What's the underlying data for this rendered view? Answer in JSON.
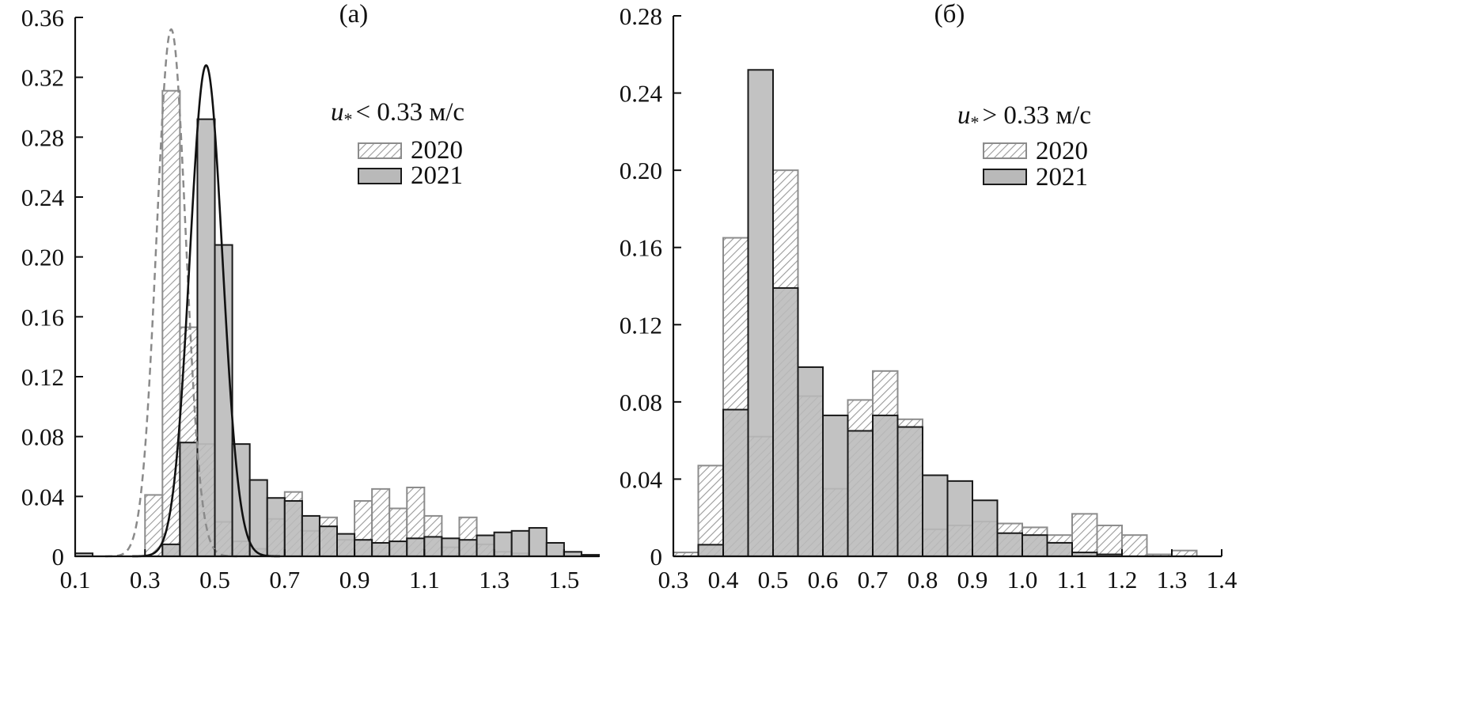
{
  "colors": {
    "axis": "#111111",
    "bar2021_fill": "#b9b9b9",
    "bar2021_stroke": "#1a1a1a",
    "bar2020_stroke": "#8c8c8c",
    "hatch": "#9a9a9a",
    "curve2020": "#8a8a8a",
    "curve2021": "#111111"
  },
  "chart_data": [
    {
      "type": "bar",
      "panel": "left",
      "title": "(а)",
      "xlim": [
        0.1,
        1.6
      ],
      "ylim": [
        0,
        0.36
      ],
      "xticks": [
        0.1,
        0.3,
        0.5,
        0.7,
        0.9,
        1.1,
        1.3,
        1.5
      ],
      "xtick_labels": [
        "0.1",
        "0.3",
        "0.5",
        "0.7",
        "0.9",
        "1.1",
        "1.3",
        "1.5"
      ],
      "yticks": [
        0,
        0.04,
        0.08,
        0.12,
        0.16,
        0.2,
        0.24,
        0.28,
        0.32,
        0.36
      ],
      "ytick_labels": [
        "0",
        "0.04",
        "0.08",
        "0.12",
        "0.16",
        "0.20",
        "0.24",
        "0.28",
        "0.32",
        "0.36"
      ],
      "bin_width": 0.05,
      "bin_starts": [
        0.1,
        0.15,
        0.2,
        0.25,
        0.3,
        0.35,
        0.4,
        0.45,
        0.5,
        0.55,
        0.6,
        0.65,
        0.7,
        0.75,
        0.8,
        0.85,
        0.9,
        0.95,
        1.0,
        1.05,
        1.1,
        1.15,
        1.2,
        1.25,
        1.3,
        1.35,
        1.4,
        1.45,
        1.5,
        1.55
      ],
      "legend_title": "u",
      "legend_title_rest": "< 0.33 м/с",
      "legend_placement": "upper-center-right",
      "series": [
        {
          "name": "2020",
          "style": "hatched",
          "values": [
            0,
            0,
            0,
            0,
            0.041,
            0.311,
            0.153,
            0.075,
            0.023,
            0.01,
            0.005,
            0.025,
            0.043,
            0.017,
            0.026,
            0.011,
            0.037,
            0.045,
            0.032,
            0.046,
            0.027,
            0.006,
            0.026,
            0.008,
            0.003,
            0.002,
            0,
            0,
            0,
            0
          ]
        },
        {
          "name": "2021",
          "style": "solid",
          "values": [
            0.002,
            0,
            0,
            0,
            0,
            0.008,
            0.076,
            0.292,
            0.208,
            0.075,
            0.051,
            0.039,
            0.037,
            0.027,
            0.02,
            0.015,
            0.011,
            0.009,
            0.01,
            0.012,
            0.013,
            0.012,
            0.011,
            0.014,
            0.016,
            0.017,
            0.019,
            0.009,
            0.003,
            0.001
          ]
        }
      ],
      "curves": [
        {
          "series": "2020",
          "style": "dashed",
          "peak_x": 0.375,
          "peak_y": 0.352,
          "sigma": 0.042
        },
        {
          "series": "2021",
          "style": "solid",
          "peak_x": 0.475,
          "peak_y": 0.328,
          "sigma": 0.047
        }
      ]
    },
    {
      "type": "bar",
      "panel": "right",
      "title": "(б)",
      "xlim": [
        0.3,
        1.4
      ],
      "ylim": [
        0,
        0.28
      ],
      "xticks": [
        0.3,
        0.4,
        0.5,
        0.6,
        0.7,
        0.8,
        0.9,
        1.0,
        1.1,
        1.2,
        1.3,
        1.4
      ],
      "xtick_labels": [
        "0.3",
        "0.4",
        "0.5",
        "0.6",
        "0.7",
        "0.8",
        "0.9",
        "1.0",
        "1.1",
        "1.2",
        "1.3",
        "1.4"
      ],
      "yticks": [
        0,
        0.04,
        0.08,
        0.12,
        0.16,
        0.2,
        0.24,
        0.28
      ],
      "ytick_labels": [
        "0",
        "0.04",
        "0.08",
        "0.12",
        "0.16",
        "0.20",
        "0.24",
        "0.28"
      ],
      "bin_width": 0.05,
      "bin_starts": [
        0.3,
        0.35,
        0.4,
        0.45,
        0.5,
        0.55,
        0.6,
        0.65,
        0.7,
        0.75,
        0.8,
        0.85,
        0.9,
        0.95,
        1.0,
        1.05,
        1.1,
        1.15,
        1.2,
        1.25,
        1.3,
        1.35
      ],
      "legend_title": "u",
      "legend_title_rest": "> 0.33 м/с",
      "legend_placement": "upper-right",
      "series": [
        {
          "name": "2020",
          "style": "hatched",
          "values": [
            0.002,
            0.047,
            0.165,
            0.062,
            0.2,
            0.083,
            0.035,
            0.081,
            0.096,
            0.071,
            0.014,
            0.016,
            0.018,
            0.017,
            0.015,
            0.011,
            0.022,
            0.016,
            0.011,
            0.001,
            0.003,
            0
          ]
        },
        {
          "name": "2021",
          "style": "solid",
          "values": [
            0,
            0.006,
            0.076,
            0.252,
            0.139,
            0.098,
            0.073,
            0.065,
            0.073,
            0.067,
            0.042,
            0.039,
            0.029,
            0.012,
            0.011,
            0.007,
            0.002,
            0.001,
            0,
            0,
            0,
            0
          ]
        }
      ]
    }
  ],
  "legend": {
    "entries": [
      "2020",
      "2021"
    ],
    "subscript_glyph": "*"
  }
}
